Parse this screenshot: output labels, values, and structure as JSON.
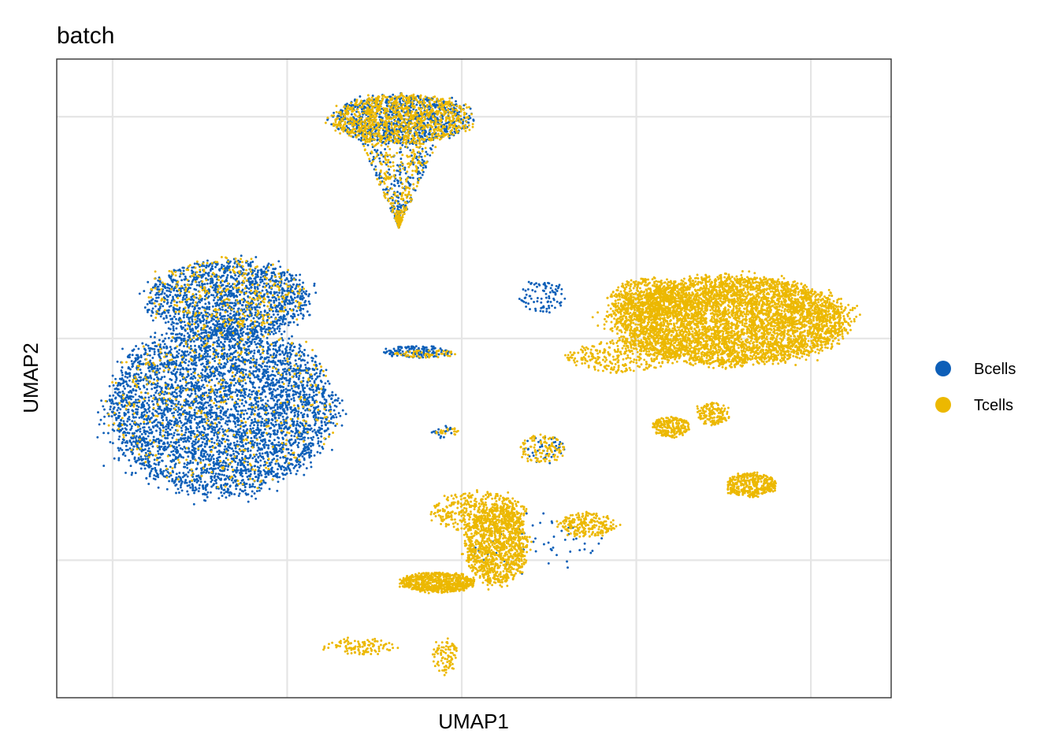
{
  "chart_data": {
    "type": "scatter",
    "title": "batch",
    "xlabel": "UMAP1",
    "ylabel": "UMAP2",
    "xlim": [
      -11.6,
      12.3
    ],
    "ylim": [
      -16.2,
      12.6
    ],
    "grid": true,
    "legend_placement": "right",
    "legend": [
      {
        "name": "Bcells",
        "color": "#0d5fb8"
      },
      {
        "name": "Tcells",
        "color": "#ecb800"
      }
    ],
    "series": [
      {
        "name": "Bcells",
        "color": "#0d5fb8",
        "clusters": [
          {
            "cx": -6.9,
            "cy": -3.2,
            "rx": 3.6,
            "ry": 4.2,
            "n": 4200,
            "shape": "blob"
          },
          {
            "cx": -6.7,
            "cy": 1.8,
            "rx": 2.6,
            "ry": 1.9,
            "n": 1400,
            "shape": "blob"
          },
          {
            "cx": -1.7,
            "cy": 9.9,
            "rx": 2.2,
            "ry": 1.2,
            "n": 900,
            "shape": "blob"
          },
          {
            "cx": -1.8,
            "cy": 7.0,
            "rx": 1.3,
            "ry": 2.0,
            "n": 260,
            "shape": "triangle"
          },
          {
            "cx": -1.3,
            "cy": -0.6,
            "rx": 1.1,
            "ry": 0.3,
            "n": 140,
            "shape": "blob"
          },
          {
            "cx": -0.6,
            "cy": -4.2,
            "rx": 0.4,
            "ry": 0.3,
            "n": 20,
            "shape": "blob"
          },
          {
            "cx": 2.3,
            "cy": 1.9,
            "rx": 0.7,
            "ry": 0.8,
            "n": 90,
            "shape": "blob"
          },
          {
            "cx": 2.1,
            "cy": -9.3,
            "rx": 2.0,
            "ry": 1.5,
            "n": 60,
            "shape": "blob"
          },
          {
            "cx": 2.3,
            "cy": -5.0,
            "rx": 0.7,
            "ry": 0.7,
            "n": 45,
            "shape": "blob"
          }
        ]
      },
      {
        "name": "Tcells",
        "color": "#ecb800",
        "clusters": [
          {
            "cx": 7.7,
            "cy": 0.8,
            "rx": 3.7,
            "ry": 2.2,
            "n": 5200,
            "shape": "blob"
          },
          {
            "cx": 5.4,
            "cy": 1.8,
            "rx": 1.3,
            "ry": 1.0,
            "n": 500,
            "shape": "blob"
          },
          {
            "cx": 4.5,
            "cy": -0.8,
            "rx": 1.6,
            "ry": 0.8,
            "n": 280,
            "shape": "blob"
          },
          {
            "cx": 6.0,
            "cy": -4.0,
            "rx": 0.6,
            "ry": 0.5,
            "n": 220,
            "shape": "blob"
          },
          {
            "cx": 7.2,
            "cy": -3.4,
            "rx": 0.5,
            "ry": 0.6,
            "n": 140,
            "shape": "blob"
          },
          {
            "cx": 8.3,
            "cy": -6.6,
            "rx": 0.8,
            "ry": 0.6,
            "n": 380,
            "shape": "blob"
          },
          {
            "cx": 1.0,
            "cy": -9.3,
            "rx": 1.0,
            "ry": 2.0,
            "n": 1100,
            "shape": "blob"
          },
          {
            "cx": -0.7,
            "cy": -11.0,
            "rx": 1.2,
            "ry": 0.5,
            "n": 700,
            "shape": "blob"
          },
          {
            "cx": 0.5,
            "cy": -7.8,
            "rx": 1.5,
            "ry": 1.0,
            "n": 400,
            "shape": "blob"
          },
          {
            "cx": 3.6,
            "cy": -8.4,
            "rx": 0.9,
            "ry": 0.6,
            "n": 220,
            "shape": "blob"
          },
          {
            "cx": -1.7,
            "cy": 9.9,
            "rx": 2.2,
            "ry": 1.2,
            "n": 1000,
            "shape": "blob"
          },
          {
            "cx": -1.8,
            "cy": 7.0,
            "rx": 1.3,
            "ry": 2.0,
            "n": 300,
            "shape": "triangle"
          },
          {
            "cx": -6.8,
            "cy": -3.0,
            "rx": 3.5,
            "ry": 4.2,
            "n": 450,
            "shape": "blob"
          },
          {
            "cx": -6.7,
            "cy": 2.0,
            "rx": 2.5,
            "ry": 1.8,
            "n": 350,
            "shape": "blob"
          },
          {
            "cx": 2.3,
            "cy": -5.0,
            "rx": 0.7,
            "ry": 0.7,
            "n": 110,
            "shape": "blob"
          },
          {
            "cx": -0.4,
            "cy": -4.2,
            "rx": 0.4,
            "ry": 0.2,
            "n": 20,
            "shape": "blob"
          },
          {
            "cx": -1.0,
            "cy": -0.7,
            "rx": 1.0,
            "ry": 0.2,
            "n": 60,
            "shape": "blob"
          },
          {
            "cx": -2.9,
            "cy": -13.9,
            "rx": 1.2,
            "ry": 0.4,
            "n": 110,
            "shape": "blob"
          },
          {
            "cx": -0.5,
            "cy": -14.3,
            "rx": 0.4,
            "ry": 0.9,
            "n": 90,
            "shape": "blob"
          }
        ]
      }
    ]
  }
}
